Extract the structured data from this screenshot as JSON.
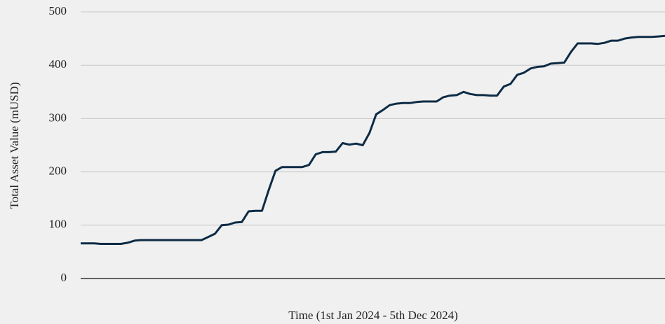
{
  "chart_data": {
    "type": "line",
    "xlabel": "Time (1st Jan 2024 - 5th Dec 2024)",
    "ylabel": "Total Asset Value (mUSD)",
    "series": [
      {
        "name": "Total Asset Value",
        "color": "#0d2b45",
        "values": [
          66,
          66,
          66,
          65,
          65,
          65,
          65,
          67,
          71,
          72,
          72,
          72,
          72,
          72,
          72,
          72,
          72,
          72,
          72,
          78,
          84,
          100,
          101,
          105,
          106,
          126,
          127,
          127,
          166,
          202,
          209,
          209,
          209,
          209,
          213,
          233,
          237,
          237,
          238,
          254,
          251,
          253,
          250,
          273,
          308,
          316,
          325,
          328,
          329,
          329,
          331,
          332,
          332,
          332,
          340,
          343,
          344,
          350,
          346,
          344,
          344,
          343,
          343,
          360,
          365,
          382,
          386,
          394,
          397,
          398,
          403,
          404,
          405,
          425,
          441,
          441,
          441,
          440,
          442,
          446,
          446,
          450,
          452,
          453,
          453,
          453,
          454,
          455
        ]
      }
    ],
    "ylim": [
      0,
      500
    ],
    "yticks": [
      0,
      100,
      200,
      300,
      400,
      500
    ],
    "grid": true
  }
}
